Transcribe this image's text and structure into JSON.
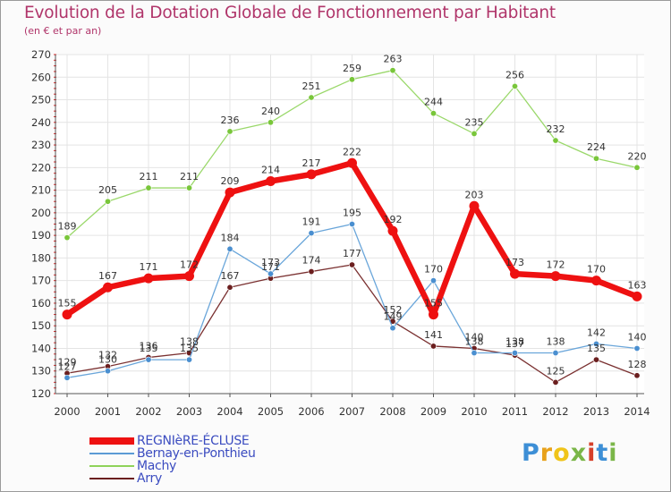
{
  "chart_data": {
    "type": "line",
    "title": "Evolution de la Dotation Globale de Fonctionnement par Habitant",
    "subtitle": "(en € et par an)",
    "xlabel": "",
    "ylabel": "",
    "ylim": [
      120,
      270
    ],
    "y_ticks": [
      "120",
      "130",
      "140",
      "150",
      "160",
      "170",
      "180",
      "190",
      "200",
      "210",
      "220",
      "230",
      "240",
      "250",
      "260",
      "270"
    ],
    "categories": [
      "2000",
      "2001",
      "2002",
      "2003",
      "2004",
      "2005",
      "2006",
      "2007",
      "2008",
      "2009",
      "2010",
      "2011",
      "2012",
      "2013",
      "2014"
    ],
    "legend_position": "bottom-left",
    "series": [
      {
        "name": "REGNIèRE-ÉCLUSE",
        "color": "#ee1111",
        "values": [
          155,
          167,
          171,
          172,
          209,
          214,
          217,
          222,
          192,
          155,
          203,
          173,
          172,
          170,
          163
        ]
      },
      {
        "name": "Bernay-en-Ponthieu",
        "color": "#5b9bd5",
        "values": [
          127,
          130,
          135,
          135,
          184,
          173,
          191,
          195,
          149,
          170,
          138,
          138,
          138,
          142,
          140
        ]
      },
      {
        "name": "Machy",
        "color": "#8fd35a",
        "values": [
          189,
          205,
          211,
          211,
          236,
          240,
          251,
          259,
          263,
          244,
          235,
          256,
          232,
          224,
          220
        ]
      },
      {
        "name": "Arry",
        "color": "#6b1f1f",
        "values": [
          129,
          132,
          136,
          138,
          167,
          171,
          174,
          177,
          152,
          141,
          140,
          137,
          125,
          135,
          128
        ]
      }
    ]
  },
  "brand": {
    "name": "Proxiti",
    "letters": [
      "P",
      "r",
      "o",
      "x",
      "i",
      "t",
      "i"
    ],
    "colors": [
      "#3d8fd6",
      "#e8a21b",
      "#f0c419",
      "#7ab648",
      "#d6402a",
      "#3d8fd6",
      "#7ab648"
    ]
  }
}
